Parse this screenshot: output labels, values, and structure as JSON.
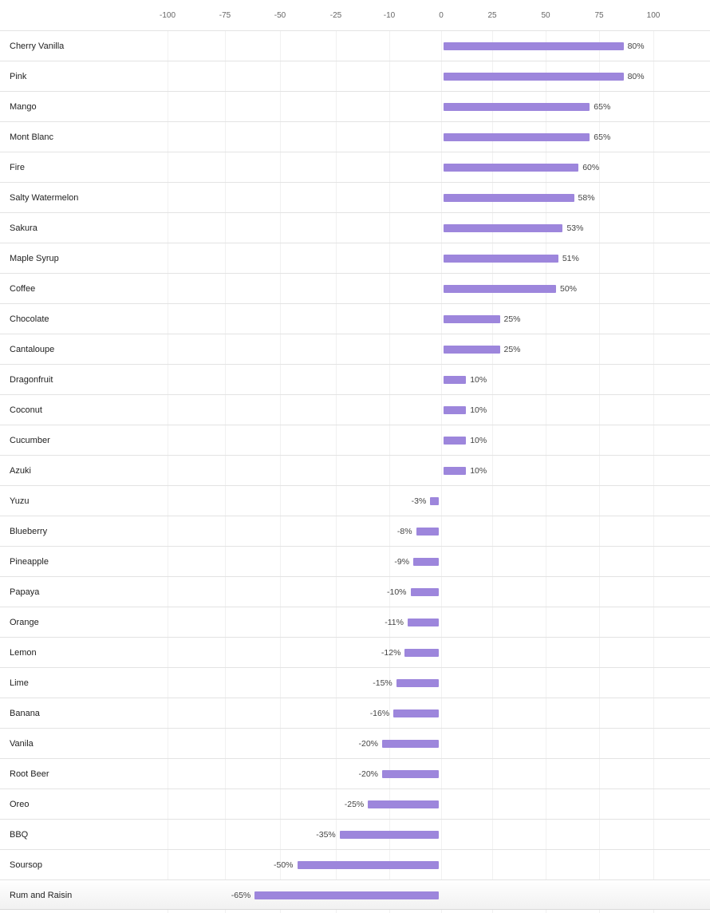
{
  "chart_data": {
    "type": "bar",
    "orientation": "horizontal",
    "title": "",
    "xlabel": "",
    "ylabel": "",
    "x_ticks": [
      -100,
      -75,
      -50,
      -25,
      -10,
      0,
      25,
      50,
      75,
      100
    ],
    "value_suffix": "%",
    "bar_color": "#9d86dc",
    "categories": [
      "Cherry Vanilla",
      "Pink",
      "Mango",
      "Mont Blanc",
      "Fire",
      "Salty Watermelon",
      "Sakura",
      "Maple Syrup",
      "Coffee",
      "Chocolate",
      "Cantaloupe",
      "Dragonfruit",
      "Coconut",
      "Cucumber",
      "Azuki",
      "Yuzu",
      "Blueberry",
      "Pineapple",
      "Papaya",
      "Orange",
      "Lemon",
      "Lime",
      "Banana",
      "Vanila",
      "Root Beer",
      "Oreo",
      "BBQ",
      "Soursop",
      "Rum and Raisin"
    ],
    "values": [
      80,
      80,
      65,
      65,
      60,
      58,
      53,
      51,
      50,
      25,
      25,
      10,
      10,
      10,
      10,
      -3,
      -8,
      -9,
      -10,
      -11,
      -12,
      -15,
      -16,
      -20,
      -20,
      -25,
      -35,
      -50,
      -65
    ],
    "value_labels": [
      "80%",
      "80%",
      "65%",
      "65%",
      "60%",
      "58%",
      "53%",
      "51%",
      "50%",
      "25%",
      "25%",
      "10%",
      "10%",
      "10%",
      "10%",
      "-3%",
      "-8%",
      "-9%",
      "-10%",
      "-11%",
      "-12%",
      "-15%",
      "-16%",
      "-20%",
      "-20%",
      "-25%",
      "-35%",
      "-50%",
      "-65%"
    ]
  }
}
